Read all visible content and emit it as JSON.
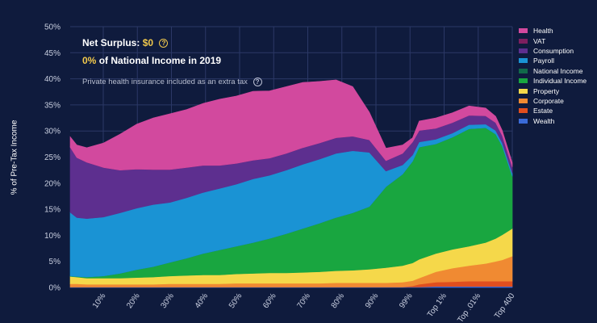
{
  "annotation": {
    "surplus_label": "Net Surplus:",
    "surplus_value": "$0",
    "income_value": "0%",
    "income_label": "of National Income in 2019",
    "note": "Private health insurance included as an extra tax",
    "help_glyph": "?"
  },
  "chart_data": {
    "type": "area",
    "stacked": true,
    "ylabel": "% of Pre-Tax Income",
    "ylim": [
      0,
      50
    ],
    "yticks": [
      "0%",
      "5%",
      "10%",
      "15%",
      "20%",
      "25%",
      "30%",
      "35%",
      "40%",
      "45%",
      "50%"
    ],
    "xticks": [
      "10%",
      "20%",
      "30%",
      "40%",
      "50%",
      "60%",
      "70%",
      "80%",
      "90%",
      "99%",
      "Top 1%",
      "Top .01%",
      "Top 400"
    ],
    "x": [
      0,
      2,
      5,
      10,
      15,
      20,
      25,
      30,
      35,
      40,
      45,
      50,
      55,
      60,
      65,
      70,
      75,
      80,
      85,
      90,
      95,
      100,
      103,
      105,
      110,
      115,
      120,
      125,
      128,
      130,
      133
    ],
    "grid": true,
    "legend_position": "right",
    "series": [
      {
        "name": "Wealth",
        "color": "#3a6bd8",
        "values": [
          0.1,
          0.1,
          0.1,
          0.1,
          0.1,
          0.1,
          0.1,
          0.1,
          0.1,
          0.1,
          0.1,
          0.1,
          0.1,
          0.1,
          0.1,
          0.1,
          0.1,
          0.1,
          0.1,
          0.1,
          0.1,
          0.1,
          0.1,
          0.1,
          0.2,
          0.2,
          0.2,
          0.2,
          0.2,
          0.2,
          0.2
        ]
      },
      {
        "name": "Estate",
        "color": "#e04e1e",
        "values": [
          0,
          0,
          0,
          0,
          0,
          0,
          0,
          0,
          0,
          0,
          0,
          0,
          0,
          0,
          0,
          0,
          0,
          0,
          0,
          0,
          0,
          0,
          0.2,
          0.5,
          0.8,
          0.9,
          1.0,
          1.0,
          1.0,
          1.0,
          1.0
        ]
      },
      {
        "name": "Corporate",
        "color": "#f08a32",
        "values": [
          0.6,
          0.6,
          0.5,
          0.5,
          0.5,
          0.5,
          0.5,
          0.6,
          0.6,
          0.6,
          0.6,
          0.7,
          0.7,
          0.7,
          0.7,
          0.7,
          0.7,
          0.8,
          0.8,
          0.8,
          0.8,
          0.9,
          1.0,
          1.2,
          2.0,
          2.6,
          3.0,
          3.4,
          3.8,
          4.1,
          4.8
        ]
      },
      {
        "name": "Property",
        "color": "#f5d84a",
        "values": [
          1.4,
          1.3,
          1.2,
          1.2,
          1.2,
          1.3,
          1.4,
          1.5,
          1.6,
          1.7,
          1.7,
          1.8,
          1.9,
          2.0,
          2.0,
          2.1,
          2.2,
          2.3,
          2.4,
          2.6,
          2.9,
          3.2,
          3.4,
          3.6,
          3.5,
          3.6,
          3.7,
          4.0,
          4.4,
          4.8,
          5.3
        ]
      },
      {
        "name": "Individual Income",
        "color": "#19a640",
        "values": [
          0.1,
          0.1,
          0.2,
          0.4,
          0.9,
          1.5,
          2.0,
          2.6,
          3.3,
          4.1,
          4.8,
          5.3,
          5.9,
          6.6,
          7.5,
          8.4,
          9.3,
          10.2,
          11.0,
          12.0,
          15.5,
          17.5,
          19.5,
          21.5,
          21.0,
          21.5,
          22.5,
          22.0,
          20.0,
          17.0,
          10.0
        ]
      },
      {
        "name": "National Income",
        "color": "#11694a",
        "values": [
          0,
          0,
          0,
          0,
          0,
          0,
          0,
          0,
          0,
          0,
          0,
          0,
          0,
          0,
          0,
          0,
          0,
          0,
          0,
          0,
          0,
          0,
          0,
          0,
          0,
          0,
          0,
          0,
          0,
          0,
          0
        ]
      },
      {
        "name": "Payroll",
        "color": "#1a93d4",
        "values": [
          12.2,
          11.3,
          11.2,
          11.3,
          11.6,
          11.8,
          11.9,
          11.5,
          11.6,
          11.7,
          11.8,
          11.9,
          12.2,
          12.1,
          12.2,
          12.3,
          12.3,
          12.3,
          11.9,
          10.4,
          3.0,
          1.8,
          1.2,
          1.0,
          0.9,
          0.8,
          0.8,
          0.7,
          0.7,
          0.6,
          0.6
        ]
      },
      {
        "name": "Consumption",
        "color": "#5d2f8f",
        "values": [
          12.5,
          11.5,
          10.8,
          9.5,
          8.2,
          7.5,
          6.7,
          6.3,
          5.8,
          5.2,
          4.4,
          4.0,
          3.6,
          3.3,
          3.2,
          3.2,
          3.1,
          3.0,
          2.8,
          2.4,
          2.0,
          2.2,
          2.5,
          2.2,
          2.1,
          2.0,
          1.8,
          1.6,
          1.5,
          1.4,
          1.2
        ]
      },
      {
        "name": "VAT",
        "color": "#7d1f5f",
        "values": [
          0,
          0,
          0,
          0,
          0,
          0,
          0,
          0,
          0,
          0,
          0,
          0,
          0,
          0,
          0,
          0,
          0,
          0,
          0,
          0,
          0,
          0,
          0,
          0,
          0,
          0,
          0,
          0,
          0,
          0,
          0
        ]
      },
      {
        "name": "Health",
        "color": "#d2499e",
        "values": [
          2.0,
          2.4,
          2.8,
          4.7,
          6.9,
          8.6,
          9.9,
          10.7,
          11.1,
          11.9,
          12.7,
          12.9,
          13.2,
          12.9,
          12.8,
          12.5,
          11.8,
          11.1,
          9.5,
          5.3,
          2.4,
          1.6,
          0.8,
          1.8,
          2.0,
          1.9,
          1.8,
          1.5,
          1.2,
          1.0,
          0.8
        ]
      }
    ]
  }
}
